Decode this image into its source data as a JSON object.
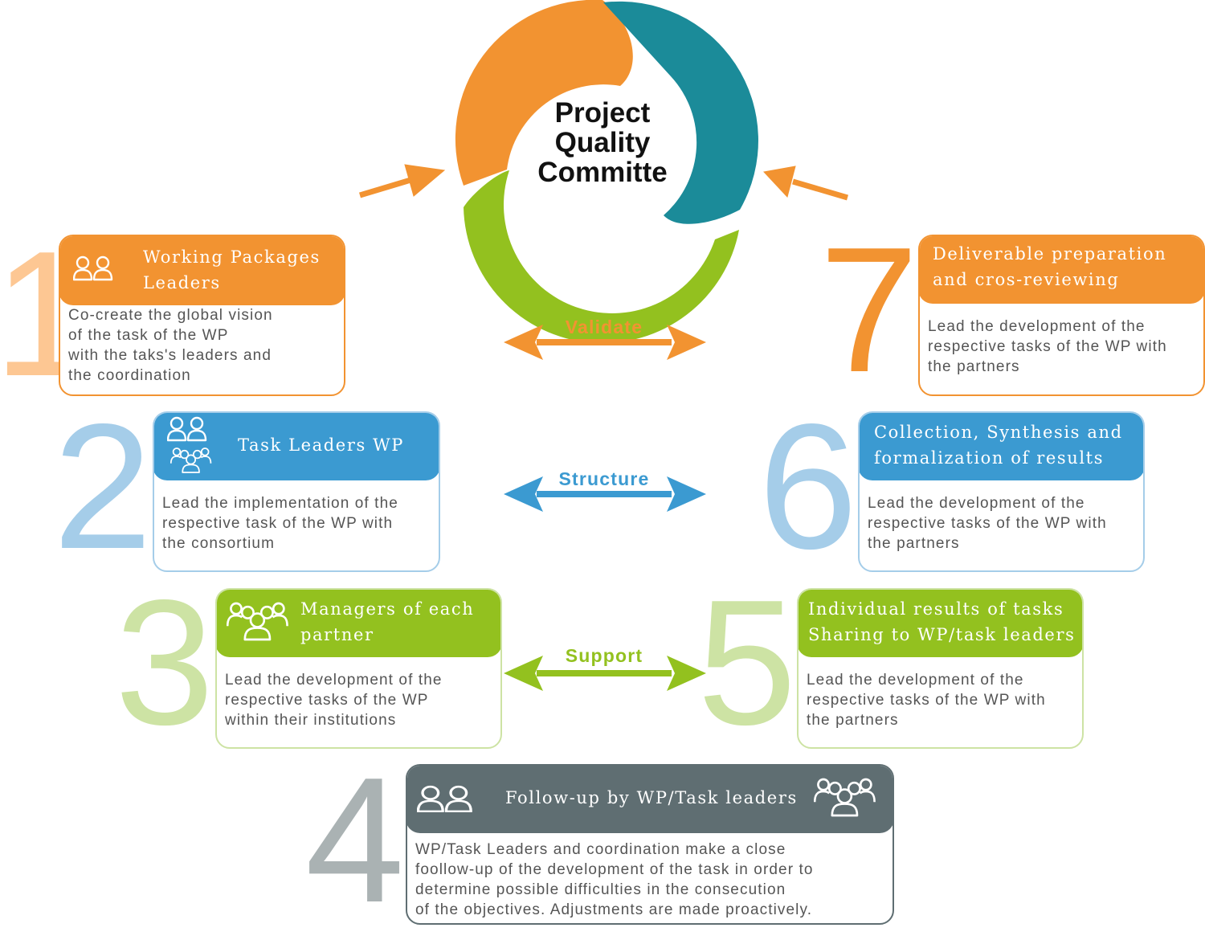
{
  "center": {
    "title_lines": [
      "Project",
      "Quality",
      "Committe"
    ]
  },
  "arrows": [
    {
      "label": "Validate",
      "color": "#f29331"
    },
    {
      "label": "Structure",
      "color": "#3b9ad1"
    },
    {
      "label": "Support",
      "color": "#93c11f"
    }
  ],
  "colors": {
    "orange": "#f29331",
    "blue": "#3b9ad1",
    "green": "#93c11f",
    "teal": "#1b8b99",
    "gray": "#5f6e72"
  },
  "steps": [
    {
      "number": "1",
      "title_lines": [
        "Working Packages",
        "Leaders"
      ],
      "icons": [
        "person-pair-icon"
      ],
      "body_lines": [
        "Co-create the global vision",
        "of the task of the WP",
        "with the taks's leaders and",
        "the coordination"
      ]
    },
    {
      "number": "2",
      "title_lines": [
        "Task Leaders WP"
      ],
      "icons": [
        "person-pair-icon",
        "group-icon"
      ],
      "body_lines": [
        "Lead the implementation of the",
        "respective task of the WP with",
        "the consortium"
      ]
    },
    {
      "number": "3",
      "title_lines": [
        "Managers of each",
        "partner"
      ],
      "icons": [
        "group-icon"
      ],
      "body_lines": [
        "Lead the development of the",
        "respective tasks of the WP",
        "within their institutions"
      ]
    },
    {
      "number": "4",
      "title_lines": [
        "Follow-up by WP/Task leaders"
      ],
      "icons": [
        "person-pair-icon",
        "group-icon"
      ],
      "body_lines": [
        "WP/Task Leaders and coordination make a close",
        "foollow-up of the development of the task in order to",
        "determine possible difficulties in the consecution",
        "of the objectives. Adjustments are made proactively."
      ]
    },
    {
      "number": "5",
      "title_lines": [
        "Individual results of tasks",
        "Sharing to WP/task leaders"
      ],
      "icons": [],
      "body_lines": [
        "Lead the development of the",
        "respective tasks of the WP with",
        "the partners"
      ]
    },
    {
      "number": "6",
      "title_lines": [
        "Collection, Synthesis and",
        "formalization of results"
      ],
      "icons": [],
      "body_lines": [
        "Lead the development of the",
        "respective tasks of the WP with",
        "the partners"
      ]
    },
    {
      "number": "7",
      "title_lines": [
        "Deliverable preparation",
        "and cros-reviewing"
      ],
      "icons": [],
      "body_lines": [
        "Lead the development of the",
        "respective tasks of the WP with",
        "the partners"
      ]
    }
  ]
}
